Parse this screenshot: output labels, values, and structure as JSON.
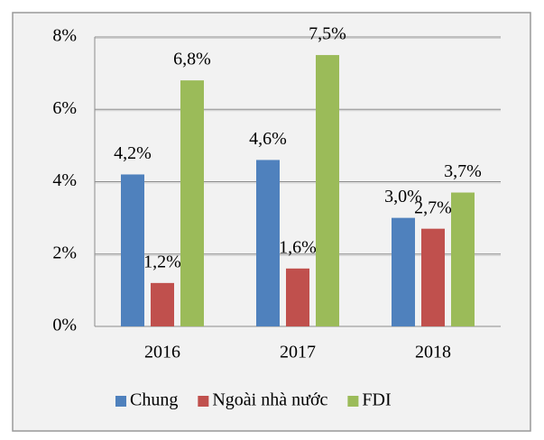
{
  "chart_data": {
    "type": "bar",
    "categories": [
      "2016",
      "2017",
      "2018"
    ],
    "series": [
      {
        "name": "Chung",
        "color": "#4f81bd",
        "values": [
          4.2,
          4.6,
          3.0
        ],
        "value_labels": [
          "4,2%",
          "4,6%",
          "3,0%"
        ]
      },
      {
        "name": "Ngoài nhà nước",
        "color": "#c0504d",
        "values": [
          1.2,
          1.6,
          2.7
        ],
        "value_labels": [
          "1,2%",
          "1,6%",
          "2,7%"
        ]
      },
      {
        "name": "FDI",
        "color": "#9bbb59",
        "values": [
          6.8,
          7.5,
          3.7
        ],
        "value_labels": [
          "6,8%",
          "7,5%",
          "3,7%"
        ]
      }
    ],
    "ylim": [
      0,
      8
    ],
    "yticks": [
      {
        "value": 0,
        "label": "0%"
      },
      {
        "value": 2,
        "label": "2%"
      },
      {
        "value": 4,
        "label": "4%"
      },
      {
        "value": 6,
        "label": "6%"
      },
      {
        "value": 8,
        "label": "8%"
      }
    ],
    "grid": true,
    "legend": "bottom"
  }
}
